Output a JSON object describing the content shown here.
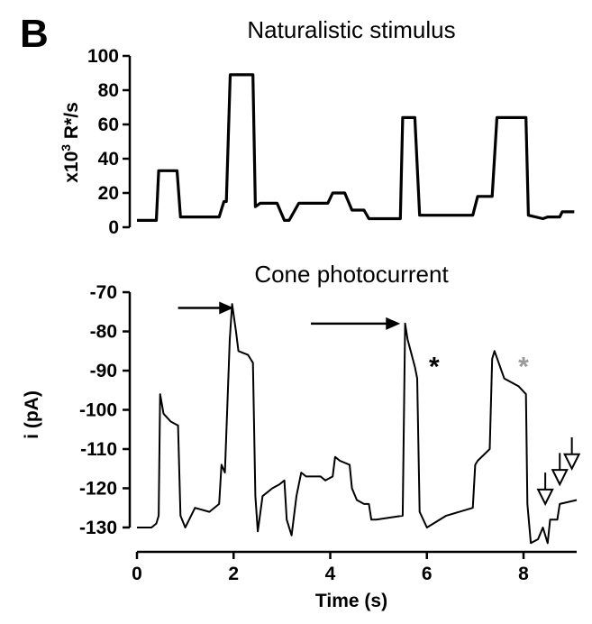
{
  "panel_label": "B",
  "chart_data": [
    {
      "type": "line",
      "title": "Naturalistic stimulus",
      "ylabel_prefix": "x10",
      "ylabel_exp": "3",
      "ylabel_suffix": " R*/s",
      "ylim": [
        0,
        100
      ],
      "yticks": [
        0,
        20,
        40,
        60,
        80,
        100
      ],
      "xlim": [
        0,
        9.1
      ],
      "color": "#000000",
      "series": [
        {
          "x": [
            0.0,
            0.2,
            0.4,
            0.45,
            0.5,
            0.75,
            0.83,
            0.9,
            1.7,
            1.8,
            1.85,
            1.93,
            2.0,
            2.4,
            2.45,
            2.55,
            2.9,
            3.05,
            3.15,
            3.35,
            3.45,
            3.95,
            4.05,
            4.3,
            4.45,
            4.7,
            4.8,
            5.45,
            5.5,
            5.75,
            5.85,
            6.4,
            6.95,
            7.05,
            7.3,
            7.35,
            7.45,
            8.05,
            8.1,
            8.4,
            8.5,
            8.75,
            8.8,
            9.05
          ],
          "y": [
            4,
            4,
            4,
            33,
            33,
            33,
            33,
            6,
            6,
            15,
            15,
            89,
            89,
            89,
            12,
            14,
            14,
            4,
            4,
            14,
            14,
            14,
            20,
            20,
            10,
            10,
            5,
            5,
            64,
            64,
            7,
            7,
            7,
            18,
            18,
            18,
            64,
            64,
            7,
            5,
            6,
            6,
            9,
            9
          ]
        }
      ]
    },
    {
      "type": "line",
      "title": "Cone photocurrent",
      "xlabel": "Time (s)",
      "ylabel": "i (pA)",
      "ylim": [
        -133,
        -67
      ],
      "yticks": [
        -130,
        -120,
        -110,
        -100,
        -90,
        -80,
        -70
      ],
      "xlim": [
        0,
        9.1
      ],
      "xticks": [
        0,
        2,
        4,
        6,
        8
      ],
      "color": "#000000",
      "series": [
        {
          "x": [
            0.0,
            0.3,
            0.4,
            0.45,
            0.48,
            0.55,
            0.7,
            0.85,
            0.9,
            1.0,
            1.2,
            1.5,
            1.7,
            1.75,
            1.82,
            1.92,
            1.97,
            2.05,
            2.1,
            2.3,
            2.4,
            2.45,
            2.5,
            2.6,
            2.8,
            2.95,
            3.05,
            3.1,
            3.2,
            3.3,
            3.4,
            3.5,
            3.8,
            3.9,
            4.05,
            4.1,
            4.2,
            4.4,
            4.45,
            4.55,
            4.7,
            4.8,
            4.85,
            4.95,
            5.5,
            5.55,
            5.6,
            5.75,
            5.8,
            5.85,
            6.0,
            6.4,
            6.95,
            7.0,
            7.05,
            7.3,
            7.35,
            7.4,
            7.6,
            7.9,
            8.05,
            8.08,
            8.15,
            8.3,
            8.4,
            8.5,
            8.55,
            8.7,
            8.75,
            9.1
          ],
          "y": [
            -130,
            -130,
            -129,
            -127,
            -96,
            -101,
            -103,
            -104,
            -127,
            -130,
            -125,
            -126,
            -124,
            -114,
            -116,
            -82,
            -73,
            -80,
            -85,
            -86,
            -88,
            -122,
            -131,
            -122,
            -120,
            -119,
            -118,
            -128,
            -132,
            -122,
            -116,
            -117,
            -117,
            -118,
            -117,
            -112,
            -113,
            -114,
            -120,
            -123,
            -124,
            -124,
            -128,
            -128,
            -127,
            -78,
            -82,
            -89,
            -92,
            -126,
            -130,
            -127,
            -125,
            -114,
            -113,
            -110,
            -87,
            -85,
            -92,
            -94,
            -96,
            -124,
            -134,
            -133,
            -130,
            -134,
            -128,
            -128,
            -124,
            -123
          ]
        }
      ],
      "annotations": [
        {
          "type": "arrow-right",
          "x_from": 0.85,
          "x_to": 2.0,
          "y": -74,
          "color": "#000000"
        },
        {
          "type": "arrow-right",
          "x_from": 3.6,
          "x_to": 5.45,
          "y": -78,
          "color": "#000000"
        },
        {
          "type": "star",
          "text": "*",
          "x": 6.15,
          "y": -88,
          "color": "#000000"
        },
        {
          "type": "star",
          "text": "*",
          "x": 8.0,
          "y": -88,
          "color": "#9a9a9a"
        },
        {
          "type": "hollow-arrow-down",
          "x": 8.45,
          "y_tip": -124,
          "len_pa": 8
        },
        {
          "type": "hollow-arrow-down",
          "x": 8.75,
          "y_tip": -119,
          "len_pa": 8
        },
        {
          "type": "hollow-arrow-down",
          "x": 9.0,
          "y_tip": -115,
          "len_pa": 8
        }
      ]
    }
  ]
}
